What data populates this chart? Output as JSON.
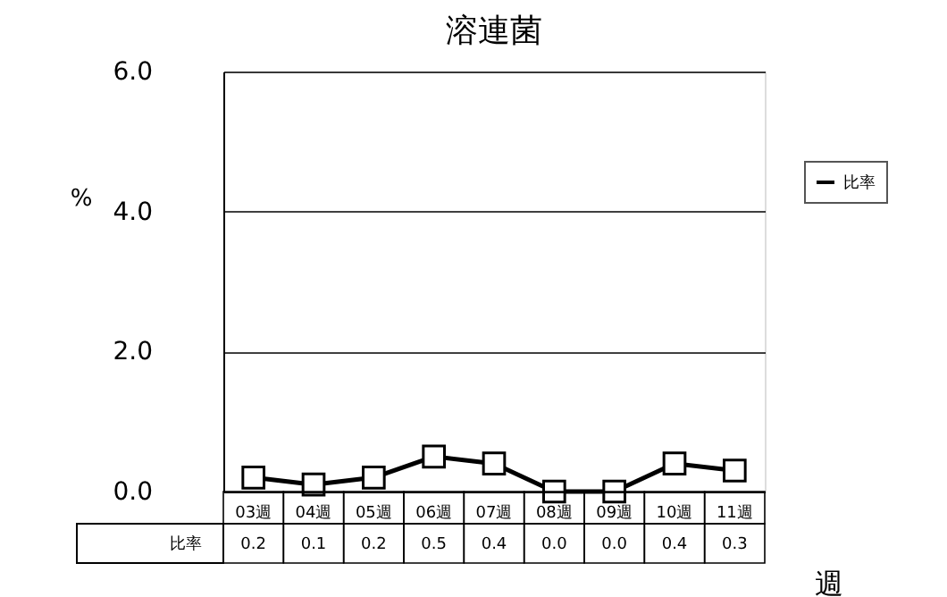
{
  "chart_data": {
    "type": "line",
    "title": "溶連菌",
    "ylabel": "%",
    "xlabel": "週",
    "categories": [
      "03週",
      "04週",
      "05週",
      "06週",
      "07週",
      "08週",
      "09週",
      "10週",
      "11週"
    ],
    "series": [
      {
        "name": "比率",
        "color": "#000000",
        "values": [
          0.2,
          0.1,
          0.2,
          0.5,
          0.4,
          0.0,
          0.0,
          0.4,
          0.3
        ],
        "value_labels": [
          "0.2",
          "0.1",
          "0.2",
          "0.5",
          "0.4",
          "0.0",
          "0.0",
          "0.4",
          "0.3"
        ]
      }
    ],
    "ylim": [
      0,
      6
    ],
    "yticks": [
      {
        "value": 0,
        "label": "0.0"
      },
      {
        "value": 2,
        "label": "2.0"
      },
      {
        "value": 4,
        "label": "4.0"
      },
      {
        "value": 6,
        "label": "6.0"
      }
    ],
    "grid": "y",
    "legend": "right",
    "marker": "square"
  }
}
